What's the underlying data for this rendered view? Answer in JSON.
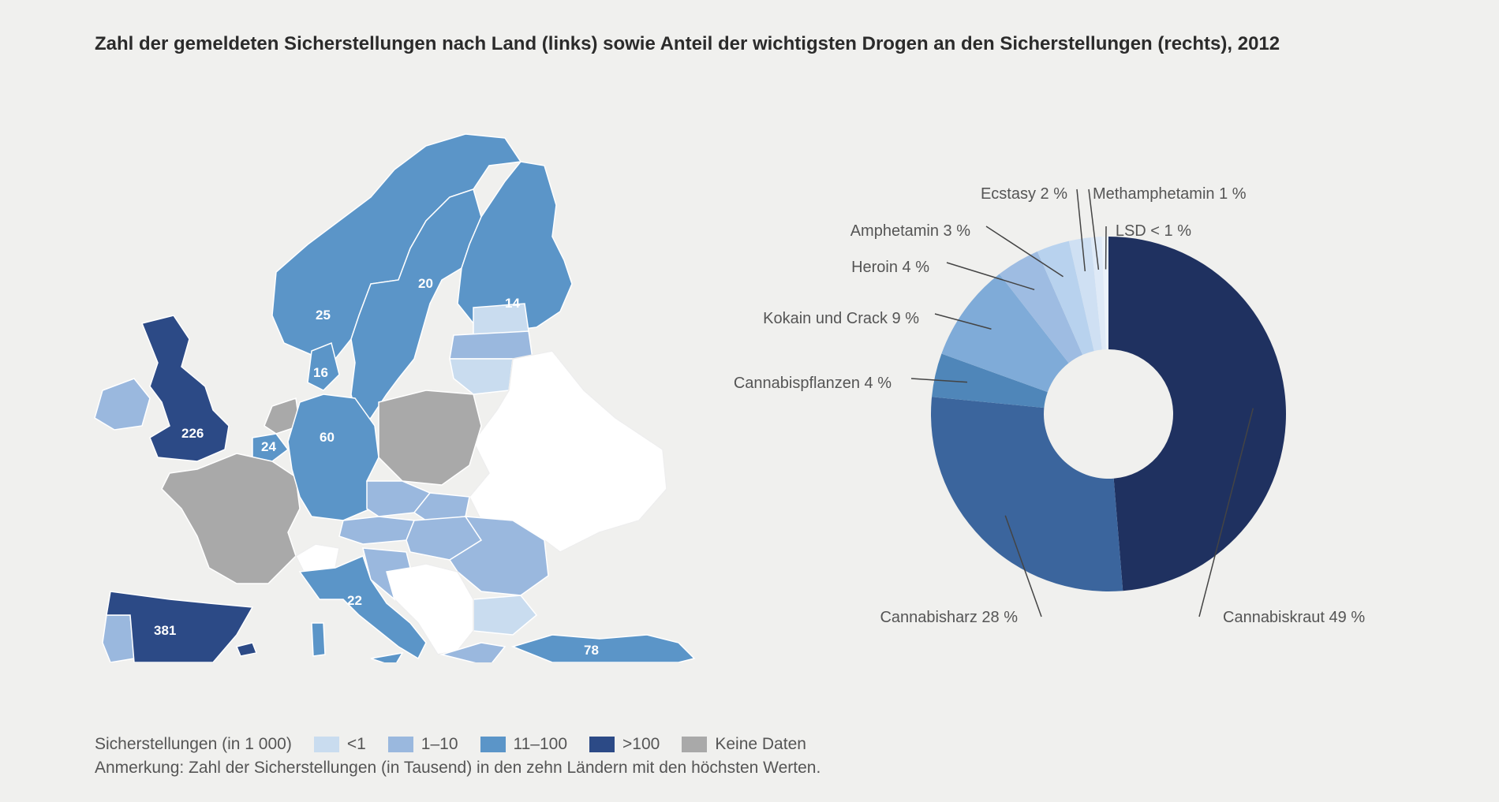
{
  "title": "Zahl der gemeldeten Sicherstellungen nach Land (links) sowie Anteil der wichtigsten Drogen an den Sicherstellungen (rechts), 2012",
  "colors": {
    "lt1": "#c9dcef",
    "c1_10": "#9ab8de",
    "c11_100": "#5b95c8",
    "gt100": "#2c4a86",
    "nodata": "#a9a9a9",
    "blank": "#ffffff"
  },
  "map": {
    "labels": [
      {
        "country": "Schweden",
        "value": "20"
      },
      {
        "country": "Finnland",
        "value": "14"
      },
      {
        "country": "Norwegen",
        "value": "25"
      },
      {
        "country": "Dänemark",
        "value": "16"
      },
      {
        "country": "Vereinigtes Königreich",
        "value": "226"
      },
      {
        "country": "Belgien",
        "value": "24"
      },
      {
        "country": "Deutschland",
        "value": "60"
      },
      {
        "country": "Italien",
        "value": "22"
      },
      {
        "country": "Spanien",
        "value": "381"
      },
      {
        "country": "Türkei",
        "value": "78"
      }
    ]
  },
  "legend": {
    "title": "Sicherstellungen (in 1 000)",
    "items": [
      {
        "label": "<1",
        "color": "#c9dcef"
      },
      {
        "label": "1–10",
        "color": "#9ab8de"
      },
      {
        "label": "11–100",
        "color": "#5b95c8"
      },
      {
        "label": ">100",
        "color": "#2c4a86"
      },
      {
        "label": "Keine Daten",
        "color": "#a9a9a9"
      }
    ]
  },
  "note": "Anmerkung: Zahl der Sicherstellungen (in Tausend) in den zehn Ländern mit den höchsten Werten.",
  "chart_data": {
    "type": "pie",
    "donut": true,
    "title": "",
    "slices": [
      {
        "label": "Cannabiskraut 49 %",
        "value": 49,
        "color": "#1f3160"
      },
      {
        "label": "Cannabisharz 28 %",
        "value": 28,
        "color": "#3b659d"
      },
      {
        "label": "Cannabispflanzen 4 %",
        "value": 4,
        "color": "#4f86b9"
      },
      {
        "label": "Kokain und Crack 9 %",
        "value": 9,
        "color": "#7fabd8"
      },
      {
        "label": "Heroin 4 %",
        "value": 4,
        "color": "#9ebce2"
      },
      {
        "label": "Amphetamin 3 %",
        "value": 3,
        "color": "#b8d2ee"
      },
      {
        "label": "Ecstasy 2 %",
        "value": 2,
        "color": "#cfe0f3"
      },
      {
        "label": "Methamphetamin 1 %",
        "value": 1,
        "color": "#dfeaf7"
      },
      {
        "label": "LSD < 1 %",
        "value": 0.6,
        "color": "#ebf2fa"
      }
    ]
  }
}
